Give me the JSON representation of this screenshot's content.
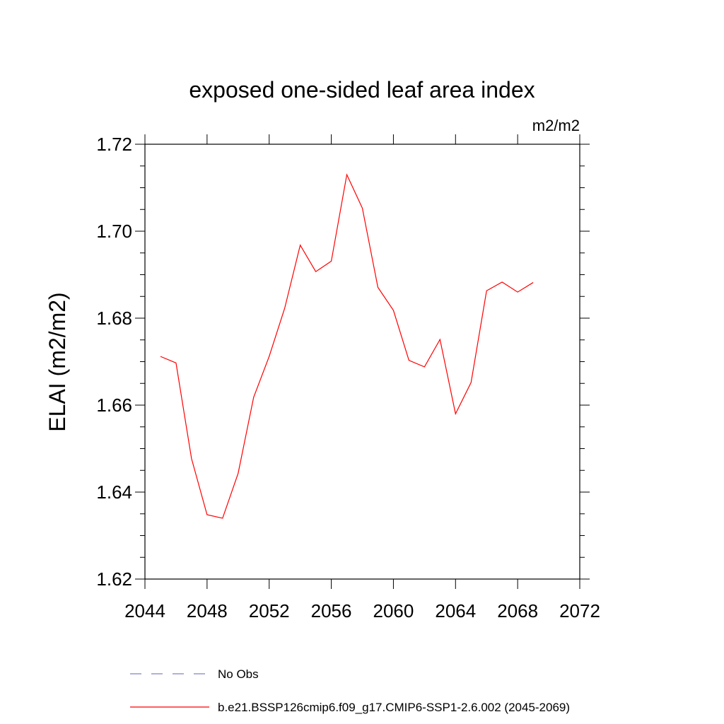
{
  "chart_data": {
    "type": "line",
    "title": "exposed one-sided leaf area index",
    "units": "m2/m2",
    "xlabel": "",
    "ylabel": "ELAI  (m2/m2)",
    "xlim": [
      2044,
      2072
    ],
    "ylim": [
      1.62,
      1.72
    ],
    "x_ticks": [
      2044,
      2048,
      2052,
      2056,
      2060,
      2064,
      2068,
      2072
    ],
    "y_ticks": [
      1.62,
      1.64,
      1.66,
      1.68,
      1.7,
      1.72
    ],
    "y_tick_labels": [
      "1.62",
      "1.64",
      "1.66",
      "1.68",
      "1.70",
      "1.72"
    ],
    "grid": false,
    "legend_position": "bottom",
    "series": [
      {
        "name": "b.e21.BSSP126cmip6.f09_g17.CMIP6-SSP1-2.6.002 (2045-2069)",
        "color": "#ff0000",
        "dash": "solid",
        "x": [
          2045,
          2046,
          2047,
          2048,
          2049,
          2050,
          2051,
          2052,
          2053,
          2054,
          2055,
          2056,
          2057,
          2058,
          2059,
          2060,
          2061,
          2062,
          2063,
          2064,
          2065,
          2066,
          2067,
          2068,
          2069
        ],
        "values": [
          1.6712,
          1.6697,
          1.6477,
          1.6348,
          1.634,
          1.6443,
          1.6618,
          1.6712,
          1.6823,
          1.6968,
          1.6907,
          1.6931,
          1.713,
          1.7053,
          1.6871,
          1.6818,
          1.6703,
          1.6688,
          1.6751,
          1.658,
          1.6652,
          1.6863,
          1.6883,
          1.686,
          1.6882
        ]
      },
      {
        "name": "No Obs",
        "color": "#8080c8",
        "dash": "dashed",
        "x": [],
        "values": []
      }
    ]
  }
}
